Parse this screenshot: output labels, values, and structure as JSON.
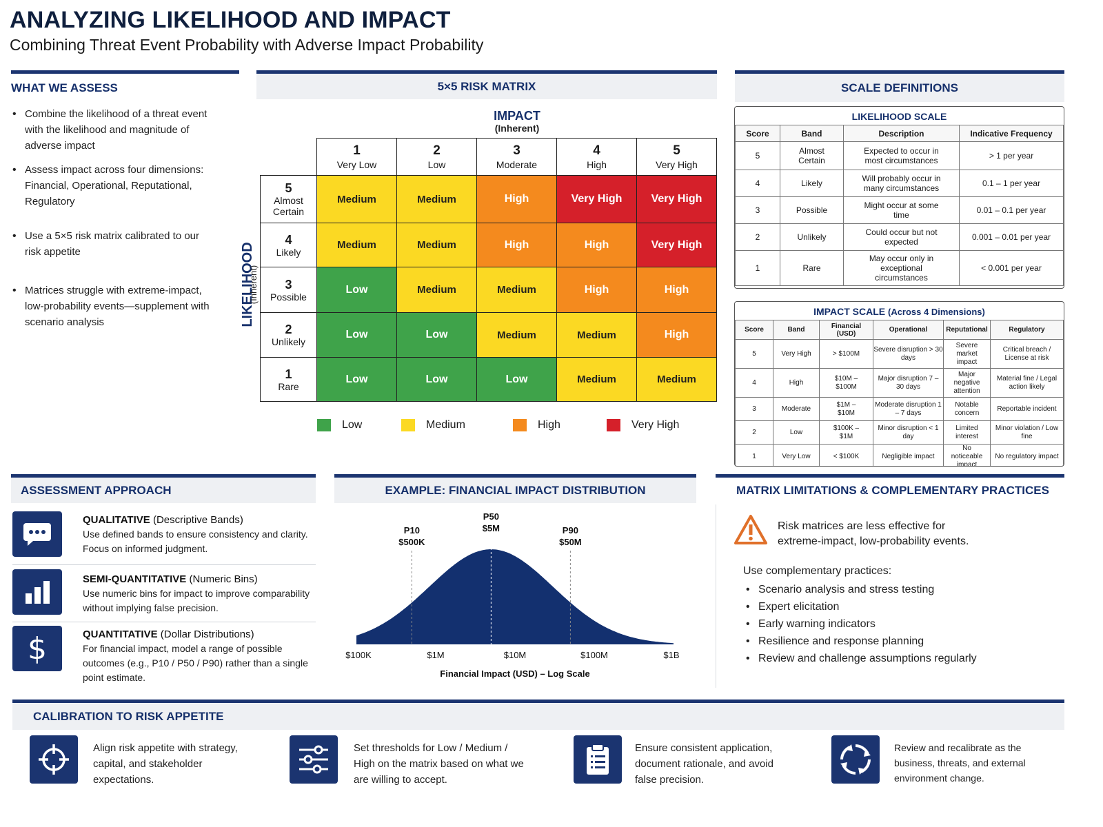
{
  "header": {
    "title": "ANALYZING LIKELIHOOD AND IMPACT",
    "subtitle": "Combining Threat Event Probability with Adverse Impact Probability"
  },
  "assess": {
    "heading": "WHAT WE ASSESS",
    "bullets": [
      "Combine the likelihood of a threat event with the likelihood and magnitude of adverse impact",
      "Assess impact across four dimensions: Financial, Operational, Reputational, Regulatory",
      "Use a 5×5 risk matrix calibrated to our risk appetite",
      "Matrices struggle with extreme-impact, low-probability events—supplement with scenario analysis"
    ]
  },
  "matrix": {
    "heading": "5×5 RISK MATRIX",
    "impact_label": "IMPACT",
    "impact_sub": "(Inherent)",
    "likelihood_label": "LIKELIHOOD",
    "likelihood_sub": "(Inherent)",
    "columns": [
      {
        "num": "1",
        "label": "Very Low"
      },
      {
        "num": "2",
        "label": "Low"
      },
      {
        "num": "3",
        "label": "Moderate"
      },
      {
        "num": "4",
        "label": "High"
      },
      {
        "num": "5",
        "label": "Very High"
      }
    ],
    "rows": [
      {
        "num": "5",
        "label": "Almost Certain",
        "cells": [
          "Medium",
          "Medium",
          "High",
          "Very High",
          "Very High"
        ]
      },
      {
        "num": "4",
        "label": "Likely",
        "cells": [
          "Medium",
          "Medium",
          "High",
          "High",
          "Very High"
        ]
      },
      {
        "num": "3",
        "label": "Possible",
        "cells": [
          "Low",
          "Medium",
          "Medium",
          "High",
          "High"
        ]
      },
      {
        "num": "2",
        "label": "Unlikely",
        "cells": [
          "Low",
          "Low",
          "Medium",
          "Medium",
          "High"
        ]
      },
      {
        "num": "1",
        "label": "Rare",
        "cells": [
          "Low",
          "Low",
          "Low",
          "Medium",
          "Medium"
        ]
      }
    ],
    "legend": [
      "Low",
      "Medium",
      "High",
      "Very High"
    ],
    "colors": {
      "Low": "#3fa34a",
      "Medium": "#fbd923",
      "High": "#f48a1e",
      "Very High": "#d5202a"
    }
  },
  "scales": {
    "heading": "SCALE DEFINITIONS",
    "likelihood": {
      "title": "LIKELIHOOD SCALE",
      "headers": [
        "Score",
        "Band",
        "Description",
        "Indicative Frequency"
      ],
      "rows": [
        [
          "5",
          "Almost Certain",
          "Expected to occur in most circumstances",
          "> 1 per year"
        ],
        [
          "4",
          "Likely",
          "Will probably occur in many circumstances",
          "0.1 – 1 per year"
        ],
        [
          "3",
          "Possible",
          "Might occur at some time",
          "0.01 – 0.1 per year"
        ],
        [
          "2",
          "Unlikely",
          "Could occur but not expected",
          "0.001 – 0.01 per year"
        ],
        [
          "1",
          "Rare",
          "May occur only in exceptional circumstances",
          "< 0.001 per year"
        ]
      ]
    },
    "impact": {
      "title": "IMPACT SCALE",
      "title_sub": "(Across 4 Dimensions)",
      "headers": [
        "Score",
        "Band",
        "Financial (USD)",
        "Operational",
        "Reputational",
        "Regulatory"
      ],
      "rows": [
        [
          "5",
          "Very High",
          "> $100M",
          "Severe disruption > 30 days",
          "Severe market impact",
          "Critical breach / License at risk"
        ],
        [
          "4",
          "High",
          "$10M – $100M",
          "Major disruption 7 – 30 days",
          "Major negative attention",
          "Material fine / Legal action likely"
        ],
        [
          "3",
          "Moderate",
          "$1M – $10M",
          "Moderate disruption 1 – 7 days",
          "Notable concern",
          "Reportable incident"
        ],
        [
          "2",
          "Low",
          "$100K – $1M",
          "Minor disruption < 1 day",
          "Limited interest",
          "Minor violation / Low fine"
        ],
        [
          "1",
          "Very Low",
          "< $100K",
          "Negligible impact",
          "No noticeable impact",
          "No regulatory impact"
        ]
      ]
    }
  },
  "approach": {
    "heading": "ASSESSMENT APPROACH",
    "items": [
      {
        "icon": "chat-icon",
        "title": "QUALITATIVE",
        "title_sub": "(Descriptive Bands)",
        "desc": "Use defined bands to ensure consistency and clarity. Focus on informed judgment."
      },
      {
        "icon": "bar-chart-icon",
        "title": "SEMI-QUANTITATIVE",
        "title_sub": "(Numeric Bins)",
        "desc": "Use numeric bins for impact to improve comparability without implying false precision."
      },
      {
        "icon": "dollar-icon",
        "title": "QUANTITATIVE",
        "title_sub": "(Dollar Distributions)",
        "desc": "For financial impact, model a range of possible outcomes (e.g., P10 / P50 / P90) rather than a single point estimate."
      }
    ]
  },
  "chart_data": {
    "type": "area",
    "title": "EXAMPLE: FINANCIAL IMPACT DISTRIBUTION",
    "xlabel": "Financial Impact (USD) – Log Scale",
    "x_scale": "log",
    "x_ticks": [
      "$100K",
      "$1M",
      "$10M",
      "$100M",
      "$1B"
    ],
    "x_range": [
      100000,
      1000000000
    ],
    "curve": "lognormal, peak at $5M",
    "color": "#13306f",
    "markers": [
      {
        "name": "P10",
        "value_label": "$500K",
        "x": 500000
      },
      {
        "name": "P50",
        "value_label": "$5M",
        "x": 5000000
      },
      {
        "name": "P90",
        "value_label": "$50M",
        "x": 50000000
      }
    ]
  },
  "limitations": {
    "heading": "MATRIX LIMITATIONS & COMPLEMENTARY PRACTICES",
    "warning": "Risk matrices are less effective for extreme-impact, low-probability events.",
    "intro": "Use complementary practices:",
    "practices": [
      "Scenario analysis and stress testing",
      "Expert elicitation",
      "Early warning indicators",
      "Resilience and response planning",
      "Review and challenge assumptions regularly"
    ]
  },
  "calibration": {
    "heading": "CALIBRATION TO RISK APPETITE",
    "items": [
      {
        "icon": "target-icon",
        "text": "Align risk appetite with strategy, capital, and stakeholder expectations."
      },
      {
        "icon": "sliders-icon",
        "text": "Set thresholds for Low / Medium / High on the matrix based on what we are willing to accept."
      },
      {
        "icon": "clipboard-icon",
        "text": "Ensure consistent application, document rationale, and avoid false precision."
      },
      {
        "icon": "cycle-icon",
        "text": "Review and recalibrate as the business, threats, and external environment change."
      }
    ]
  }
}
